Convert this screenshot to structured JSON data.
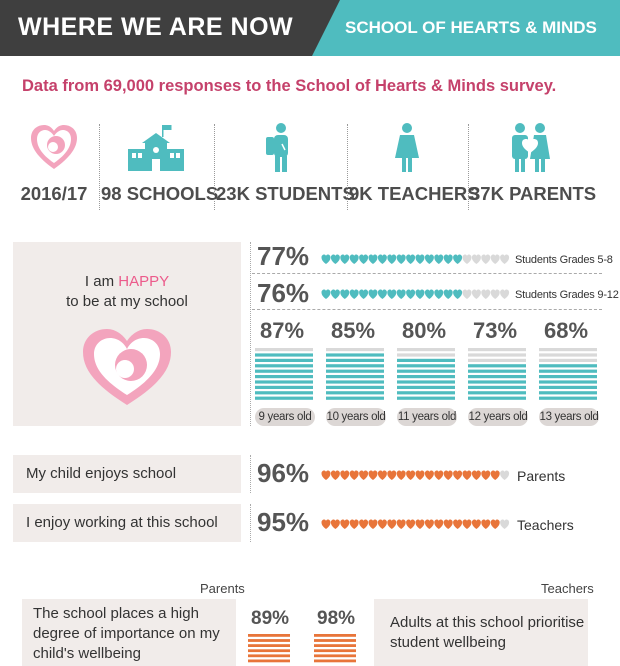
{
  "header": {
    "title": "WHERE WE ARE NOW",
    "subtitle": "SCHOOL OF HEARTS & MINDS"
  },
  "intro": "Data from 69,000 responses to the School of Hearts & Minds survey.",
  "stats": [
    {
      "label": "2016/17",
      "icon": "heart-face-icon"
    },
    {
      "label": "98 SCHOOLS",
      "icon": "school-building-icon"
    },
    {
      "label": "23K STUDENTS",
      "icon": "student-icon"
    },
    {
      "label": "9K TEACHERS",
      "icon": "teacher-icon"
    },
    {
      "label": "37K PARENTS",
      "icon": "parents-icon"
    }
  ],
  "colors": {
    "teal": "#4fbcbf",
    "pink": "#ec5b8b",
    "orange": "#e8753a",
    "grey": "#d9d9d9"
  },
  "happy": {
    "label_pre": "I am ",
    "label_highlight": "HAPPY",
    "label_post": "to be at my school"
  },
  "chart_data": [
    {
      "type": "bar",
      "series": [
        {
          "name": "Students Grades 5-8",
          "value": 77,
          "label": "77%"
        },
        {
          "name": "Students Grades 9-12",
          "value": 76,
          "label": "76%"
        }
      ]
    },
    {
      "type": "bar",
      "categories": [
        "9 years old",
        "10 years old",
        "11 years old",
        "12 years old",
        "13 years old"
      ],
      "values": [
        87,
        85,
        80,
        73,
        68
      ],
      "labels": [
        "87%",
        "85%",
        "80%",
        "73%",
        "68%"
      ]
    },
    {
      "type": "bar",
      "series": [
        {
          "statement": "My child enjoys school",
          "name": "Parents",
          "value": 96,
          "label": "96%"
        },
        {
          "statement": "I enjoy working at this school",
          "name": "Teachers",
          "value": 95,
          "label": "95%"
        }
      ]
    },
    {
      "type": "bar",
      "groups": [
        "Parents",
        "Teachers"
      ],
      "statements": [
        "The school places a high degree of importance on my child's wellbeing",
        "Adults at this school prioritise student wellbeing"
      ],
      "values": [
        89,
        98
      ],
      "labels": [
        "89%",
        "98%"
      ]
    }
  ]
}
